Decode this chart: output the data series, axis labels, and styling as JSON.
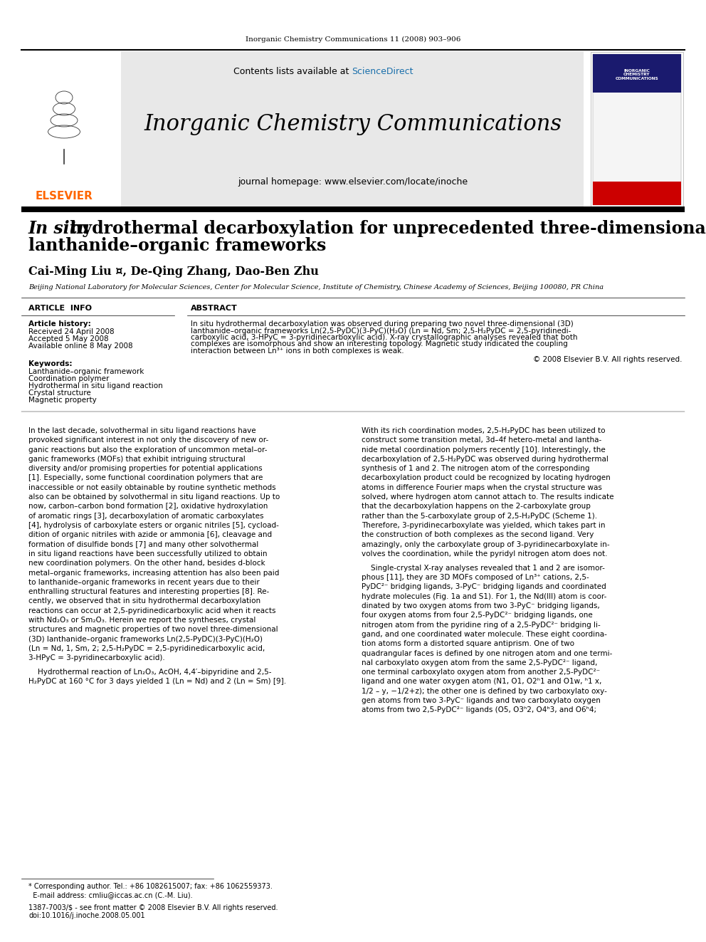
{
  "page_width": 9.92,
  "page_height": 13.23,
  "background_color": "#ffffff",
  "header_journal_line": "Inorganic Chemistry Communications 11 (2008) 903–906",
  "header_journal_line_size": 7.5,
  "journal_name": "Inorganic Chemistry Communications",
  "journal_name_size": 22,
  "journal_homepage": "journal homepage: www.elsevier.com/locate/inoche",
  "journal_homepage_size": 9,
  "contents_line": "Contents lists available at ScienceDirect",
  "contents_size": 9,
  "sciencedirect_color": "#1a6fab",
  "elsevier_color": "#ff6600",
  "elsevier_text": "ELSEVIER",
  "article_title_size": 17,
  "authors_size": 11.5,
  "affiliation": "Beijing National Laboratory for Molecular Sciences, Center for Molecular Science, Institute of Chemistry, Chinese Academy of Sciences, Beijing 100080, PR China",
  "affiliation_size": 7,
  "article_info_label": "ARTICLE  INFO",
  "abstract_label": "ABSTRACT",
  "section_label_size": 8,
  "article_history_label": "Article history:",
  "received": "Received 24 April 2008",
  "accepted": "Accepted 5 May 2008",
  "available": "Available online 8 May 2008",
  "history_size": 7.5,
  "keywords_label": "Keywords:",
  "keywords": [
    "Lanthanide–organic framework",
    "Coordination polymer",
    "Hydrothermal in situ ligand reaction",
    "Crystal structure",
    "Magnetic property"
  ],
  "keywords_size": 7.5,
  "abstract_size": 7.5,
  "abstract_copyright": "© 2008 Elsevier B.V. All rights reserved.",
  "copyright_size": 7.5,
  "body_col1_size": 7.5,
  "body_col2_size": 7.5,
  "footnote_text": "* Corresponding author. Tel.: +86 1082615007; fax: +86 1062559373.\n  E-mail address: cmliu@iccas.ac.cn (C.-M. Liu).",
  "footnote_size": 7,
  "doi_text": "1387-7003/$ - see front matter © 2008 Elsevier B.V. All rights reserved.\ndoi:10.1016/j.inoche.2008.05.001",
  "doi_size": 7
}
